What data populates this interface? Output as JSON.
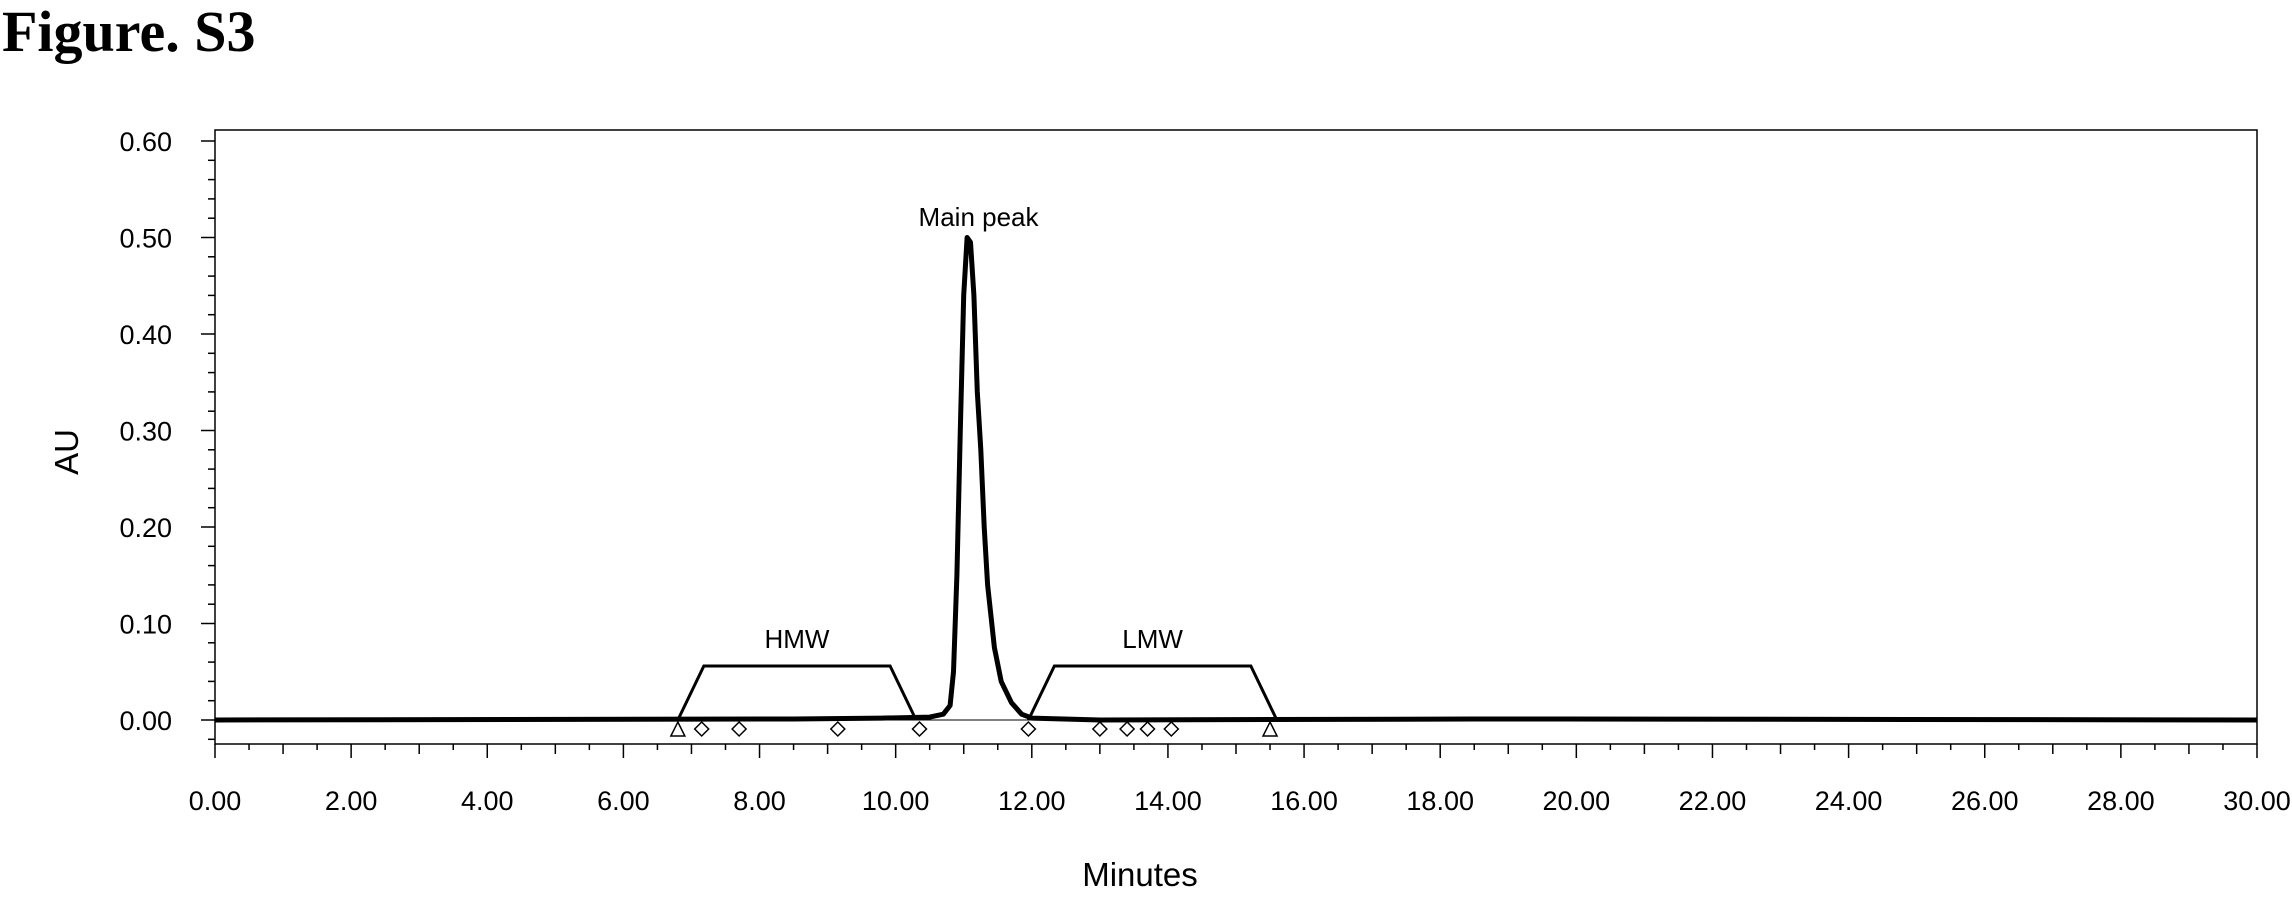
{
  "figure_title": "Figure. S3",
  "chart_data": {
    "type": "line",
    "title": "",
    "xlabel": "Minutes",
    "ylabel": "AU",
    "xlim": [
      0,
      30
    ],
    "ylim": [
      -0.025,
      0.6
    ],
    "x_ticks": [
      0,
      2,
      4,
      6,
      8,
      10,
      12,
      14,
      16,
      18,
      20,
      22,
      24,
      26,
      28,
      30
    ],
    "x_tick_labels": [
      "0.00",
      "2.00",
      "4.00",
      "6.00",
      "8.00",
      "10.00",
      "12.00",
      "14.00",
      "16.00",
      "18.00",
      "20.00",
      "22.00",
      "24.00",
      "26.00",
      "28.00",
      "30.00"
    ],
    "y_ticks": [
      0,
      0.1,
      0.2,
      0.3,
      0.4,
      0.5,
      0.6
    ],
    "y_tick_labels": [
      "0.00",
      "0.10",
      "0.20",
      "0.30",
      "0.40",
      "0.50",
      "0.60"
    ],
    "grid": false,
    "line_color": "#000000",
    "series": [
      {
        "x": [
          0,
          8.5,
          9.8,
          10.5,
          10.7,
          10.8,
          10.85,
          10.9,
          10.95,
          11.0,
          11.05,
          11.1,
          11.15,
          11.2,
          11.25,
          11.3,
          11.35,
          11.45,
          11.55,
          11.7,
          11.85,
          12.0,
          13.0,
          18.5,
          19.8,
          30
        ],
        "y": [
          0,
          0.001,
          0.002,
          0.003,
          0.006,
          0.015,
          0.05,
          0.15,
          0.3,
          0.44,
          0.5,
          0.495,
          0.44,
          0.34,
          0.28,
          0.2,
          0.14,
          0.075,
          0.04,
          0.018,
          0.006,
          0.002,
          0.0,
          0.001,
          0.001,
          0
        ]
      }
    ],
    "annotations": [
      {
        "label": "Main peak",
        "x": 11.1,
        "y": 0.52
      },
      {
        "label": "HMW",
        "x_start": 6.8,
        "x_end": 10.3,
        "bracket_y": 0.056
      },
      {
        "label": "LMW",
        "x_start": 11.95,
        "x_end": 15.6,
        "bracket_y": 0.056
      }
    ],
    "markers": {
      "triangle": [
        6.8,
        15.5
      ],
      "diamond": [
        7.15,
        7.7,
        9.15,
        10.35,
        11.95,
        13.0,
        13.4,
        13.7,
        14.05
      ]
    }
  }
}
